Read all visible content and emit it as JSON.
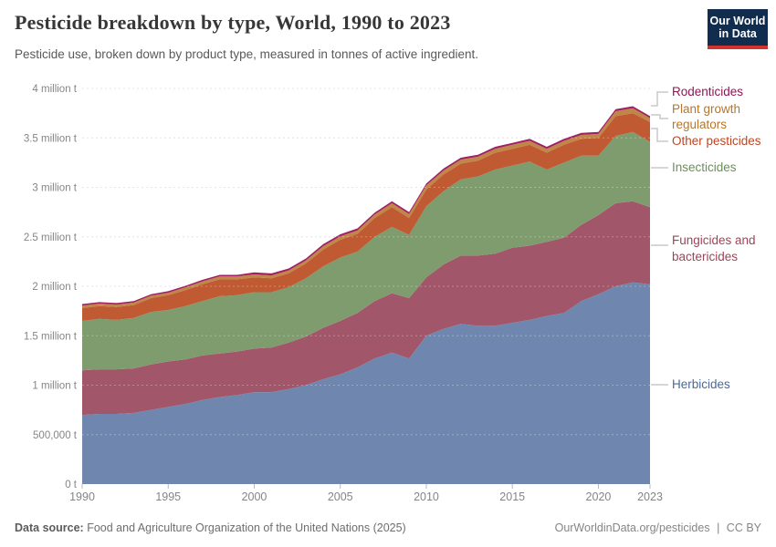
{
  "header": {
    "title": "Pesticide breakdown by type, World, 1990 to 2023",
    "subtitle": "Pesticide use, broken down by product type, measured in tonnes of active ingredient.",
    "logo": {
      "line1": "Our World",
      "line2": "in Data",
      "bg_color": "#102d50",
      "accent_color": "#d0342c"
    }
  },
  "footer": {
    "source_label": "Data source:",
    "source_text": " Food and Agriculture Organization of the United Nations (2025)",
    "url": "OurWorldinData.org/pesticides",
    "separator": "|",
    "license": "CC BY"
  },
  "chart_data": {
    "type": "area",
    "stacked": true,
    "title": "Pesticide breakdown by type, World, 1990 to 2023",
    "ylabel": "tonnes of active ingredient",
    "xlabel": "",
    "grid": true,
    "legend_position": "right",
    "xlim": [
      1990,
      2023
    ],
    "ylim": [
      0,
      4000000
    ],
    "x": [
      1990,
      1991,
      1992,
      1993,
      1994,
      1995,
      1996,
      1997,
      1998,
      1999,
      2000,
      2001,
      2002,
      2003,
      2004,
      2005,
      2006,
      2007,
      2008,
      2009,
      2010,
      2011,
      2012,
      2013,
      2014,
      2015,
      2016,
      2017,
      2018,
      2019,
      2020,
      2021,
      2022,
      2023
    ],
    "x_ticks": [
      1990,
      1995,
      2000,
      2005,
      2010,
      2015,
      2020,
      2023
    ],
    "y_ticks": [
      {
        "value": 0,
        "label": "0 t"
      },
      {
        "value": 500000,
        "label": "500,000 t"
      },
      {
        "value": 1000000,
        "label": "1 million t"
      },
      {
        "value": 1500000,
        "label": "1.5 million t"
      },
      {
        "value": 2000000,
        "label": "2 million t"
      },
      {
        "value": 2500000,
        "label": "2.5 million t"
      },
      {
        "value": 3000000,
        "label": "3 million t"
      },
      {
        "value": 3500000,
        "label": "3.5 million t"
      },
      {
        "value": 4000000,
        "label": "4 million t"
      }
    ],
    "series": [
      {
        "id": "herbicides",
        "name": "Herbicides",
        "legend_lines": [
          "Herbicides"
        ],
        "color": "#6f87ae",
        "label_color": "#4a689b",
        "values": [
          700000,
          710000,
          710000,
          720000,
          750000,
          780000,
          810000,
          850000,
          880000,
          900000,
          930000,
          930000,
          960000,
          1000000,
          1060000,
          1110000,
          1180000,
          1270000,
          1330000,
          1270000,
          1500000,
          1570000,
          1620000,
          1600000,
          1600000,
          1630000,
          1660000,
          1700000,
          1730000,
          1850000,
          1920000,
          2000000,
          2040000,
          2020000
        ]
      },
      {
        "id": "fungicides_bactericides",
        "name": "Fungicides and bactericides",
        "legend_lines": [
          "Fungicides and",
          "bactericides"
        ],
        "color": "#a1566a",
        "label_color": "#9d4458",
        "values": [
          450000,
          450000,
          450000,
          450000,
          460000,
          460000,
          450000,
          450000,
          440000,
          440000,
          440000,
          450000,
          470000,
          490000,
          520000,
          540000,
          550000,
          580000,
          600000,
          610000,
          590000,
          650000,
          690000,
          710000,
          730000,
          760000,
          750000,
          750000,
          760000,
          770000,
          800000,
          840000,
          820000,
          780000
        ]
      },
      {
        "id": "insecticides",
        "name": "Insecticides",
        "legend_lines": [
          "Insecticides"
        ],
        "color": "#7e9c6e",
        "label_color": "#6b8f58",
        "values": [
          500000,
          510000,
          500000,
          510000,
          530000,
          520000,
          540000,
          550000,
          580000,
          570000,
          570000,
          560000,
          560000,
          590000,
          620000,
          640000,
          620000,
          650000,
          670000,
          640000,
          720000,
          740000,
          770000,
          800000,
          850000,
          830000,
          850000,
          730000,
          760000,
          700000,
          600000,
          680000,
          700000,
          660000
        ]
      },
      {
        "id": "other_pesticides",
        "name": "Other pesticides",
        "legend_lines": [
          "Other pesticides"
        ],
        "color": "#c05a33",
        "label_color": "#bd4522",
        "values": [
          130000,
          130000,
          130000,
          130000,
          140000,
          150000,
          160000,
          170000,
          170000,
          160000,
          150000,
          140000,
          140000,
          150000,
          170000,
          180000,
          180000,
          190000,
          200000,
          170000,
          170000,
          170000,
          160000,
          160000,
          170000,
          170000,
          170000,
          170000,
          180000,
          170000,
          180000,
          200000,
          190000,
          200000
        ]
      },
      {
        "id": "plant_growth_regulators",
        "name": "Plant growth regulators",
        "legend_lines": [
          "Plant growth",
          "regulators"
        ],
        "color": "#bf8647",
        "label_color": "#b87626",
        "values": [
          25000,
          25000,
          25000,
          25000,
          25000,
          25000,
          30000,
          30000,
          30000,
          30000,
          30000,
          30000,
          30000,
          30000,
          35000,
          35000,
          35000,
          35000,
          40000,
          40000,
          40000,
          40000,
          40000,
          40000,
          40000,
          40000,
          40000,
          40000,
          40000,
          40000,
          40000,
          50000,
          50000,
          40000
        ]
      },
      {
        "id": "rodenticides",
        "name": "Rodenticides",
        "legend_lines": [
          "Rodenticides"
        ],
        "color": "#a02061",
        "label_color": "#8e1656",
        "values": [
          15000,
          15000,
          15000,
          15000,
          15000,
          15000,
          15000,
          15000,
          15000,
          15000,
          20000,
          20000,
          20000,
          20000,
          20000,
          20000,
          20000,
          20000,
          20000,
          20000,
          20000,
          20000,
          20000,
          20000,
          20000,
          20000,
          20000,
          20000,
          20000,
          20000,
          20000,
          20000,
          20000,
          20000
        ]
      }
    ]
  }
}
